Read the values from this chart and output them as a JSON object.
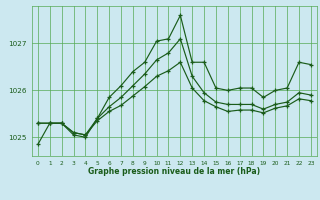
{
  "title": "Graphe pression niveau de la mer (hPa)",
  "bg_color": "#cce8f0",
  "grid_color": "#55aa55",
  "line_color": "#1a5c1a",
  "xlim": [
    -0.5,
    23.5
  ],
  "ylim": [
    1024.6,
    1027.8
  ],
  "yticks": [
    1025,
    1026,
    1027
  ],
  "xticks": [
    0,
    1,
    2,
    3,
    4,
    5,
    6,
    7,
    8,
    9,
    10,
    11,
    12,
    13,
    14,
    15,
    16,
    17,
    18,
    19,
    20,
    21,
    22,
    23
  ],
  "series": [
    [
      1024.85,
      1025.3,
      1025.3,
      1025.05,
      1025.0,
      1025.4,
      1025.85,
      1026.1,
      1026.4,
      1026.6,
      1027.05,
      1027.1,
      1027.6,
      1026.6,
      1026.6,
      1026.05,
      1026.0,
      1026.05,
      1026.05,
      1025.85,
      1026.0,
      1026.05,
      1026.6,
      1026.55
    ],
    [
      1025.3,
      1025.3,
      1025.3,
      1025.1,
      1025.05,
      1025.4,
      1025.65,
      1025.85,
      1026.1,
      1026.35,
      1026.65,
      1026.8,
      1027.1,
      1026.3,
      1025.95,
      1025.75,
      1025.7,
      1025.7,
      1025.7,
      1025.6,
      1025.7,
      1025.75,
      1025.95,
      1025.9
    ],
    [
      1025.3,
      1025.3,
      1025.3,
      1025.1,
      1025.05,
      1025.35,
      1025.55,
      1025.68,
      1025.88,
      1026.08,
      1026.3,
      1026.42,
      1026.6,
      1026.05,
      1025.78,
      1025.65,
      1025.55,
      1025.58,
      1025.58,
      1025.52,
      1025.62,
      1025.67,
      1025.82,
      1025.78
    ]
  ]
}
